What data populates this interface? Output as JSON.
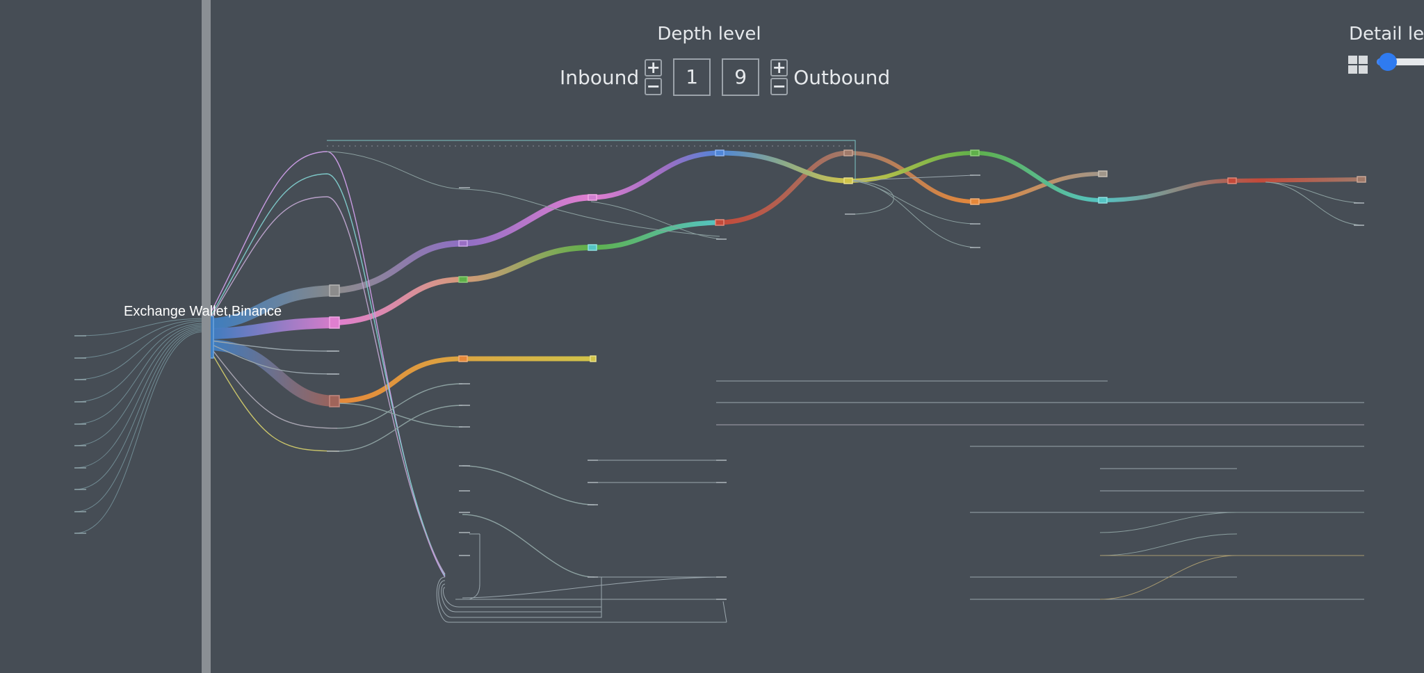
{
  "depth": {
    "title": "Depth level",
    "inbound_label": "Inbound",
    "outbound_label": "Outbound",
    "inbound_value": "1",
    "outbound_value": "9",
    "plus": "+",
    "minus": "−"
  },
  "detail": {
    "title": "Detail lev",
    "level": 0.2
  },
  "graph": {
    "focus_node_label": "Exchange Wallet,Binance"
  },
  "icons": {
    "grid": "grid-icon",
    "slider": "slider-thumb"
  },
  "colors": {
    "background": "#464d55",
    "focus_bar": "#8a8f94",
    "focus_node": "#3d7fc4",
    "accent_blue": "#2f7bf0",
    "flow_colors": [
      "#5b8fd6",
      "#b478d0",
      "#e07fd0",
      "#8c8c8c",
      "#55c4c4",
      "#5fb04a",
      "#e5883a",
      "#c44a3a",
      "#d1c44a",
      "#a07a6a"
    ]
  }
}
